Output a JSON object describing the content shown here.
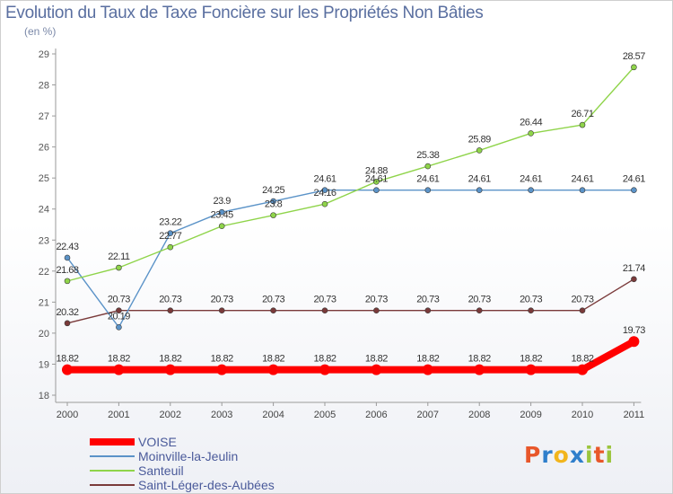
{
  "title": "Evolution du Taux de Taxe Foncière sur les Propriétés Non Bâties",
  "unit_label": "(en %)",
  "logo": {
    "text": "Proxiti",
    "letters": [
      {
        "ch": "P",
        "color": "#e8572a"
      },
      {
        "ch": "r",
        "color": "#2f7fcb"
      },
      {
        "ch": "o",
        "color": "#f2b51c"
      },
      {
        "ch": "x",
        "color": "#2f7fcb"
      },
      {
        "ch": "i",
        "color": "#9bc53d"
      },
      {
        "ch": "t",
        "color": "#e8572a"
      },
      {
        "ch": "i",
        "color": "#9bc53d"
      }
    ]
  },
  "chart_data": {
    "type": "line",
    "title": "Evolution du Taux de Taxe Foncière sur les Propriétés Non Bâties",
    "ylabel": "(en %)",
    "xlabel": "",
    "categories": [
      "2000",
      "2001",
      "2002",
      "2003",
      "2004",
      "2005",
      "2006",
      "2007",
      "2008",
      "2009",
      "2010",
      "2011"
    ],
    "ylim": [
      18,
      29
    ],
    "yticks": [
      18,
      19,
      20,
      21,
      22,
      23,
      24,
      25,
      26,
      27,
      28,
      29
    ],
    "grid": false,
    "legend": "bottom-left",
    "series": [
      {
        "name": "VOISE",
        "color": "#ff0000",
        "thick": true,
        "values": [
          18.82,
          18.82,
          18.82,
          18.82,
          18.82,
          18.82,
          18.82,
          18.82,
          18.82,
          18.82,
          18.82,
          19.73
        ],
        "labels": [
          "18.82",
          "18.82",
          "18.82",
          "18.82",
          "18.82",
          "18.82",
          "18.82",
          "18.82",
          "18.82",
          "18.82",
          "18.82",
          "19.73"
        ]
      },
      {
        "name": "Moinville-la-Jeulin",
        "color": "#5b93c8",
        "thick": false,
        "values": [
          22.43,
          20.19,
          23.22,
          23.9,
          24.25,
          24.61,
          24.61,
          24.61,
          24.61,
          24.61,
          24.61,
          24.61
        ],
        "labels": [
          "22.43",
          "20.19",
          "23.22",
          "23.9",
          "24.25",
          "24.61",
          "24.61",
          "24.61",
          "24.61",
          "24.61",
          "24.61",
          "24.61"
        ]
      },
      {
        "name": "Santeuil",
        "color": "#8fd44a",
        "thick": false,
        "values": [
          21.68,
          22.11,
          22.77,
          23.45,
          23.8,
          24.16,
          24.88,
          25.38,
          25.89,
          26.44,
          26.71,
          28.57
        ],
        "labels": [
          "21.68",
          "22.11",
          "22.77",
          "23.45",
          "23.8",
          "24.16",
          "24.88",
          "25.38",
          "25.89",
          "26.44",
          "26.71",
          "28.57"
        ]
      },
      {
        "name": "Saint-Léger-des-Aubées",
        "color": "#7a3a3a",
        "thick": false,
        "values": [
          20.32,
          20.73,
          20.73,
          20.73,
          20.73,
          20.73,
          20.73,
          20.73,
          20.73,
          20.73,
          20.73,
          21.74
        ],
        "labels": [
          "20.32",
          "20.73",
          "20.73",
          "20.73",
          "20.73",
          "20.73",
          "20.73",
          "20.73",
          "20.73",
          "20.73",
          "20.73",
          "21.74"
        ]
      }
    ]
  }
}
